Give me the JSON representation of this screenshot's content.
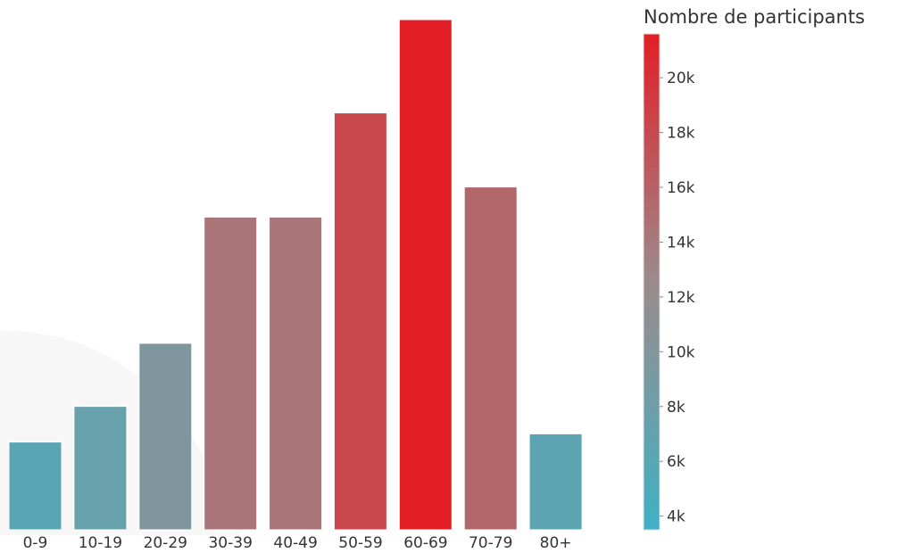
{
  "chart_data": {
    "type": "bar",
    "title": "",
    "xlabel": "",
    "ylabel": "",
    "categories": [
      "0-9",
      "10-19",
      "20-29",
      "30-39",
      "40-49",
      "50-59",
      "60-69",
      "70-79",
      "80+"
    ],
    "values": [
      6200,
      7500,
      9800,
      14400,
      14400,
      18200,
      21600,
      15500,
      6500
    ],
    "colorscale": {
      "title": "Nombre de participants",
      "ticks": [
        4000,
        6000,
        8000,
        10000,
        12000,
        14000,
        16000,
        18000,
        20000
      ],
      "tick_labels": [
        "4k",
        "6k",
        "8k",
        "10k",
        "12k",
        "14k",
        "16k",
        "18k",
        "20k"
      ],
      "range": [
        3500,
        21600
      ],
      "colors": [
        "#3fb0c4",
        "#9b8b8d",
        "#e31e25"
      ]
    },
    "ylim": [
      3000,
      21600
    ],
    "grid": false,
    "legend": "colorbar-right"
  }
}
